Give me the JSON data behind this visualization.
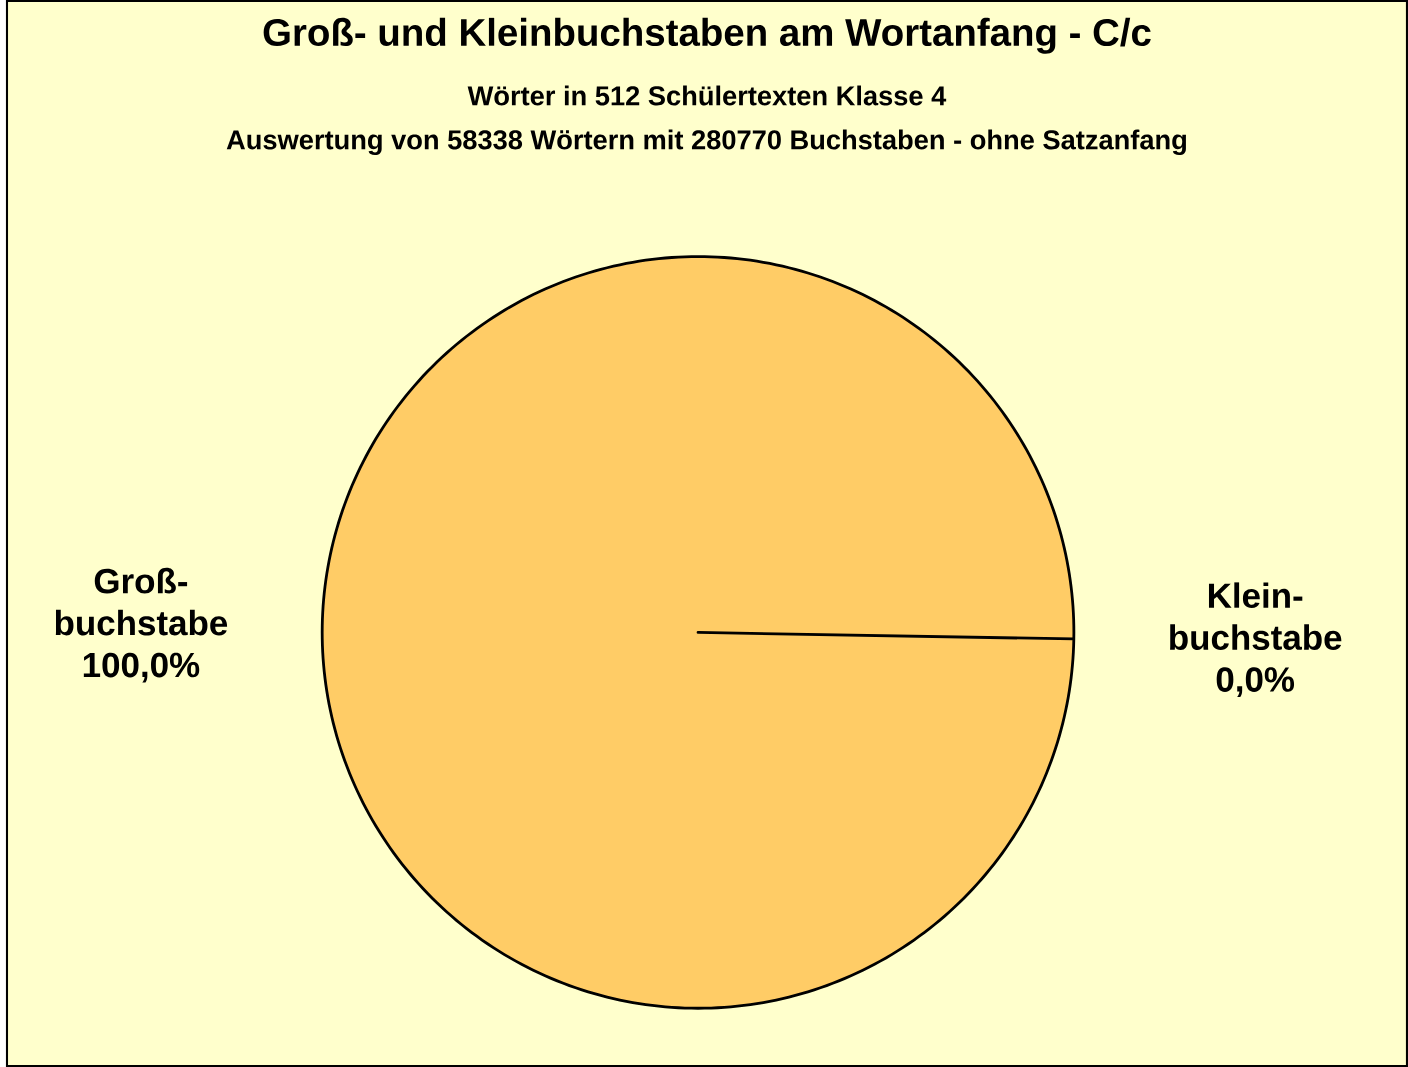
{
  "chart_data": {
    "type": "pie",
    "title": "Groß- und  Kleinbuchstaben am Wortanfang - C/c",
    "subtitle": "Wörter in 512 Schülertexten Klasse 4",
    "annotations": [
      "Auswertung von 58338 Wörtern mit 280770 Buchstaben - ohne Satzanfang"
    ],
    "categories": [
      "Groß-buchstabe",
      "Klein-buchstabe"
    ],
    "values": [
      100,
      0
    ],
    "value_labels": [
      "100,0%",
      "0,0%"
    ],
    "colors": [
      "#ffcc66",
      "#ffcc66"
    ]
  }
}
